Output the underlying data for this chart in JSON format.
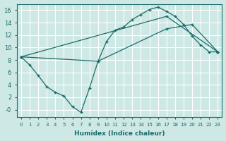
{
  "xlabel": "Humidex (Indice chaleur)",
  "background_color": "#cde8e5",
  "grid_color": "#ffffff",
  "line_color": "#1a6b6b",
  "xlim": [
    -0.5,
    23.5
  ],
  "ylim": [
    -1.2,
    17
  ],
  "xticks": [
    0,
    1,
    2,
    3,
    4,
    5,
    6,
    7,
    8,
    9,
    10,
    11,
    12,
    13,
    14,
    15,
    16,
    17,
    18,
    19,
    20,
    21,
    22,
    23
  ],
  "yticks": [
    0,
    2,
    4,
    6,
    8,
    10,
    12,
    14,
    16
  ],
  "ytick_labels": [
    "-0",
    "2",
    "4",
    "6",
    "8",
    "10",
    "12",
    "14",
    "16"
  ],
  "series": [
    {
      "x": [
        0,
        1,
        2,
        3,
        4,
        5,
        6,
        7,
        8,
        9,
        10,
        11,
        12,
        13,
        14,
        15,
        16,
        17,
        18,
        19,
        20,
        21,
        22,
        23
      ],
      "y": [
        8.5,
        7.2,
        5.5,
        3.7,
        2.8,
        2.2,
        0.5,
        -0.4,
        3.5,
        7.8,
        11.0,
        12.8,
        13.3,
        14.5,
        15.3,
        16.1,
        16.5,
        15.8,
        15.0,
        13.7,
        11.8,
        10.4,
        9.3,
        9.3
      ]
    },
    {
      "x": [
        0,
        17,
        23
      ],
      "y": [
        8.5,
        15.0,
        9.3
      ]
    },
    {
      "x": [
        0,
        9,
        17,
        20,
        23
      ],
      "y": [
        8.5,
        7.8,
        13.0,
        13.7,
        9.3
      ]
    }
  ]
}
